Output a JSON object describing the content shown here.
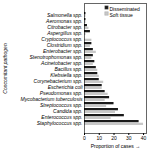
{
  "chart_data": {
    "type": "bar",
    "orientation": "horizontal",
    "categories": [
      "Staphylococcus spp.",
      "Enterococcus spp.",
      "Candida spp.",
      "Streptococcus spp.",
      "Mycobacterium tuberculosis",
      "Pseudomonas spp.",
      "Escherichia coli",
      "Corynebacterium spp.",
      "Klebsiella spp.",
      "Bacillus spp.",
      "Acinetobacter spp.",
      "Stenotrophomonas spp.",
      "Enterobacter spp.",
      "Clostridium spp.",
      "Cryptococcus spp.",
      "Aspergillus spp.",
      "Citrobacter spp.",
      "Aeromonas spp.",
      "Salmonella spp."
    ],
    "series": [
      {
        "name": "Disseminated",
        "color": "#1a1a1a",
        "values": [
          37,
          27,
          23,
          20,
          17,
          14,
          12,
          10,
          9,
          8,
          7,
          6,
          6,
          5,
          0,
          4,
          2,
          1,
          1
        ]
      },
      {
        "name": "Soft tissue",
        "color": "#c8c8c8",
        "values": [
          40,
          18,
          21,
          15,
          14,
          16,
          12,
          13,
          10,
          9,
          6,
          5,
          8,
          4,
          5,
          1,
          3,
          1,
          1
        ]
      }
    ],
    "xlabel": "Proportion of cases",
    "ylabel": "Concomitant pathogen",
    "xlim": [
      0,
      42
    ],
    "xticks": [
      0,
      10,
      20,
      30,
      40
    ],
    "legend": "upper right"
  }
}
